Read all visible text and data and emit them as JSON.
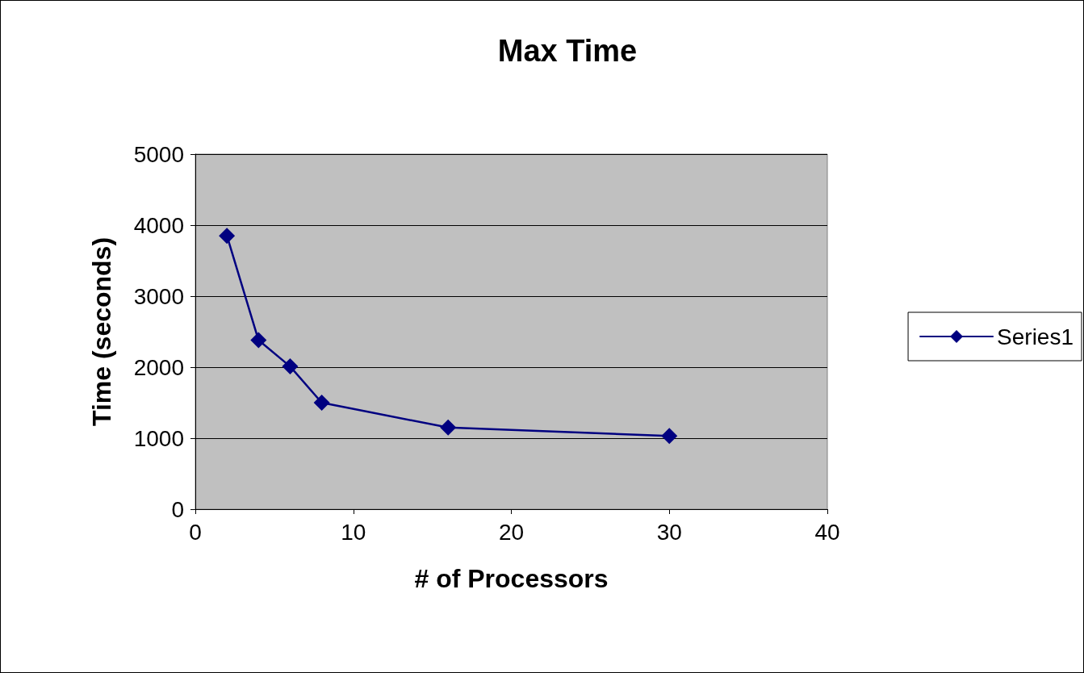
{
  "chart_data": {
    "type": "line",
    "title": "Max Time",
    "xlabel": "# of Processors",
    "ylabel": "Time (seconds)",
    "x": [
      2,
      4,
      6,
      8,
      16,
      30
    ],
    "series": [
      {
        "name": "Series1",
        "color": "#000080",
        "values": [
          3850,
          2380,
          2010,
          1500,
          1150,
          1030
        ]
      }
    ],
    "xlim": [
      0,
      40
    ],
    "xticks": [
      0,
      10,
      20,
      30,
      40
    ],
    "ylim": [
      0,
      5000
    ],
    "yticks": [
      0,
      1000,
      2000,
      3000,
      4000,
      5000
    ],
    "grid": "y",
    "legend": "right",
    "marker": "diamond",
    "line_style": "solid"
  }
}
